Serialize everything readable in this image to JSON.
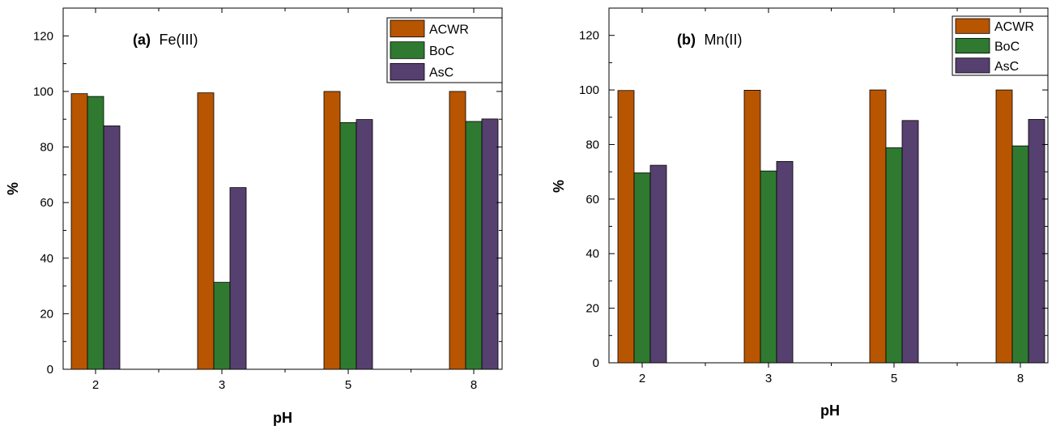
{
  "colors": {
    "ACWR": "#b85500",
    "BoC": "#2f7a30",
    "AsC": "#56406f"
  },
  "chart_data": [
    {
      "type": "bar",
      "panel_tag": "(a)",
      "panel_name": "Fe(III)",
      "xlabel": "pH",
      "ylabel": "%",
      "categories": [
        "2",
        "3",
        "5",
        "8"
      ],
      "ylim": [
        0,
        130
      ],
      "yticks": [
        "0",
        "20",
        "40",
        "60",
        "80",
        "100",
        "120"
      ],
      "legend_position": "top-right",
      "series": [
        {
          "name": "ACWR",
          "values": [
            99.2,
            99.5,
            100,
            100
          ]
        },
        {
          "name": "BoC",
          "values": [
            98.2,
            31.3,
            88.8,
            89.2
          ]
        },
        {
          "name": "AsC",
          "values": [
            87.6,
            65.4,
            89.9,
            90.1
          ]
        }
      ]
    },
    {
      "type": "bar",
      "panel_tag": "(b)",
      "panel_name": "Mn(II)",
      "xlabel": "pH",
      "ylabel": "%",
      "categories": [
        "2",
        "3",
        "5",
        "8"
      ],
      "ylim": [
        0,
        130
      ],
      "yticks": [
        "0",
        "20",
        "40",
        "60",
        "80",
        "100",
        "120"
      ],
      "legend_position": "top-right",
      "series": [
        {
          "name": "ACWR",
          "values": [
            99.8,
            99.9,
            100,
            100
          ]
        },
        {
          "name": "BoC",
          "values": [
            69.6,
            70.3,
            78.8,
            79.5
          ]
        },
        {
          "name": "AsC",
          "values": [
            72.4,
            73.8,
            88.8,
            89.2
          ]
        }
      ]
    }
  ]
}
